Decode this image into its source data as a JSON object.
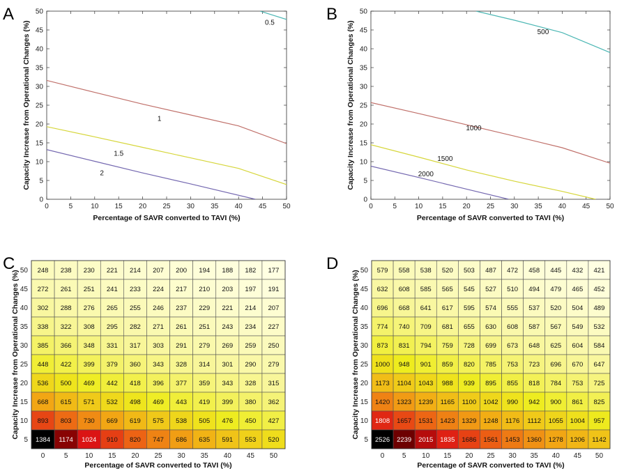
{
  "chart_data": [
    {
      "panel": "A",
      "type": "line",
      "subtype": "contour",
      "xlabel": "Percentage of SAVR converted to TAVI (%)",
      "ylabel": "Capacity Increase from Operational Changes (%)",
      "xlim": [
        0,
        50
      ],
      "ylim": [
        0,
        50
      ],
      "xticks": [
        0,
        5,
        10,
        15,
        20,
        25,
        30,
        35,
        40,
        45,
        50
      ],
      "yticks": [
        0,
        5,
        10,
        15,
        20,
        25,
        30,
        35,
        40,
        45,
        50
      ],
      "series": [
        {
          "label": "0.5",
          "color": "#4cb7b4",
          "points": [
            [
              44.5,
              50
            ],
            [
              50,
              47.8
            ]
          ],
          "label_at": [
            46.5,
            47
          ]
        },
        {
          "label": "1",
          "color": "#c0706a",
          "points": [
            [
              0,
              31.6
            ],
            [
              10,
              28.4
            ],
            [
              20,
              25.3
            ],
            [
              30,
              22.4
            ],
            [
              40,
              19.5
            ],
            [
              50,
              14.8
            ]
          ],
          "label_at": [
            23.5,
            21.5
          ]
        },
        {
          "label": "1.5",
          "color": "#d6d63a",
          "points": [
            [
              0,
              19.3
            ],
            [
              10,
              16.6
            ],
            [
              20,
              13.8
            ],
            [
              30,
              11.0
            ],
            [
              40,
              8.2
            ],
            [
              50,
              3.9
            ]
          ],
          "label_at": [
            15,
            12.2
          ]
        },
        {
          "label": "2",
          "color": "#7468b0",
          "points": [
            [
              0,
              13.2
            ],
            [
              10,
              10.1
            ],
            [
              20,
              7.0
            ],
            [
              30,
              4.1
            ],
            [
              43.5,
              0
            ]
          ],
          "label_at": [
            11.5,
            7
          ]
        }
      ]
    },
    {
      "panel": "B",
      "type": "line",
      "subtype": "contour",
      "xlabel": "Percentage of SAVR converted to TAVI (%)",
      "ylabel": "Capacity Increase from Operational Changes (%)",
      "xlim": [
        0,
        50
      ],
      "ylim": [
        0,
        50
      ],
      "xticks": [
        0,
        5,
        10,
        15,
        20,
        25,
        30,
        35,
        40,
        45,
        50
      ],
      "yticks": [
        0,
        5,
        10,
        15,
        20,
        25,
        30,
        35,
        40,
        45,
        50
      ],
      "series": [
        {
          "label": "500",
          "color": "#4cb7b4",
          "points": [
            [
              22,
              50
            ],
            [
              30,
              47.6
            ],
            [
              40,
              44.3
            ],
            [
              50,
              39.0
            ]
          ],
          "label_at": [
            36,
            44.5
          ]
        },
        {
          "label": "1000",
          "color": "#c0706a",
          "points": [
            [
              0,
              25.7
            ],
            [
              10,
              22.8
            ],
            [
              20,
              19.8
            ],
            [
              30,
              16.8
            ],
            [
              40,
              13.7
            ],
            [
              50,
              9.6
            ]
          ],
          "label_at": [
            21.5,
            19
          ]
        },
        {
          "label": "1500",
          "color": "#d6d63a",
          "points": [
            [
              0,
              14.5
            ],
            [
              10,
              11.2
            ],
            [
              20,
              7.8
            ],
            [
              30,
              4.8
            ],
            [
              40,
              2.1
            ],
            [
              47,
              0
            ]
          ],
          "label_at": [
            15.5,
            10.8
          ]
        },
        {
          "label": "2000",
          "color": "#7468b0",
          "points": [
            [
              0,
              8.8
            ],
            [
              10,
              5.8
            ],
            [
              20,
              2.7
            ],
            [
              28.8,
              0
            ]
          ],
          "label_at": [
            11.5,
            6.8
          ]
        }
      ]
    },
    {
      "panel": "C",
      "type": "heatmap",
      "xlabel": "Percentage of SAVR converted to TAVI (%)",
      "ylabel": "Capacity Increase from Operational Changes (%)",
      "x": [
        0,
        5,
        10,
        15,
        20,
        25,
        30,
        35,
        40,
        45,
        50
      ],
      "y": [
        50,
        45,
        40,
        35,
        30,
        25,
        20,
        15,
        10,
        5
      ],
      "values": [
        [
          248,
          238,
          230,
          221,
          214,
          207,
          200,
          194,
          188,
          182,
          177
        ],
        [
          272,
          261,
          251,
          241,
          233,
          224,
          217,
          210,
          203,
          197,
          191
        ],
        [
          302,
          288,
          276,
          265,
          255,
          246,
          237,
          229,
          221,
          214,
          207
        ],
        [
          338,
          322,
          308,
          295,
          282,
          271,
          261,
          251,
          243,
          234,
          227
        ],
        [
          385,
          366,
          348,
          331,
          317,
          303,
          291,
          279,
          269,
          259,
          250
        ],
        [
          448,
          422,
          399,
          379,
          360,
          343,
          328,
          314,
          301,
          290,
          279
        ],
        [
          536,
          500,
          469,
          442,
          418,
          396,
          377,
          359,
          343,
          328,
          315
        ],
        [
          668,
          615,
          571,
          532,
          498,
          469,
          443,
          419,
          399,
          380,
          362
        ],
        [
          893,
          803,
          730,
          669,
          619,
          575,
          538,
          505,
          476,
          450,
          427
        ],
        [
          1384,
          1174,
          1024,
          910,
          820,
          747,
          686,
          635,
          591,
          553,
          520
        ]
      ]
    },
    {
      "panel": "D",
      "type": "heatmap",
      "xlabel": "Percentage of SAVR converted to TAVI (%)",
      "ylabel": "Capacity Increase from Operational Changes (%)",
      "x": [
        0,
        5,
        10,
        15,
        20,
        25,
        30,
        35,
        40,
        45,
        50
      ],
      "y": [
        50,
        45,
        40,
        35,
        30,
        25,
        20,
        15,
        10,
        5
      ],
      "values": [
        [
          579,
          558,
          538,
          520,
          503,
          487,
          472,
          458,
          445,
          432,
          421
        ],
        [
          632,
          608,
          585,
          565,
          545,
          527,
          510,
          494,
          479,
          465,
          452
        ],
        [
          696,
          668,
          641,
          617,
          595,
          574,
          555,
          537,
          520,
          504,
          489
        ],
        [
          774,
          740,
          709,
          681,
          655,
          630,
          608,
          587,
          567,
          549,
          532
        ],
        [
          873,
          831,
          794,
          759,
          728,
          699,
          673,
          648,
          625,
          604,
          584
        ],
        [
          1000,
          948,
          901,
          859,
          820,
          785,
          753,
          723,
          696,
          670,
          647
        ],
        [
          1173,
          1104,
          1043,
          988,
          939,
          895,
          855,
          818,
          784,
          753,
          725
        ],
        [
          1420,
          1323,
          1239,
          1165,
          1100,
          1042,
          990,
          942,
          900,
          861,
          825
        ],
        [
          1808,
          1657,
          1531,
          1423,
          1329,
          1248,
          1176,
          1112,
          1055,
          1004,
          957
        ],
        [
          2526,
          2239,
          2015,
          1835,
          1686,
          1561,
          1453,
          1360,
          1278,
          1206,
          1142
        ]
      ]
    }
  ]
}
